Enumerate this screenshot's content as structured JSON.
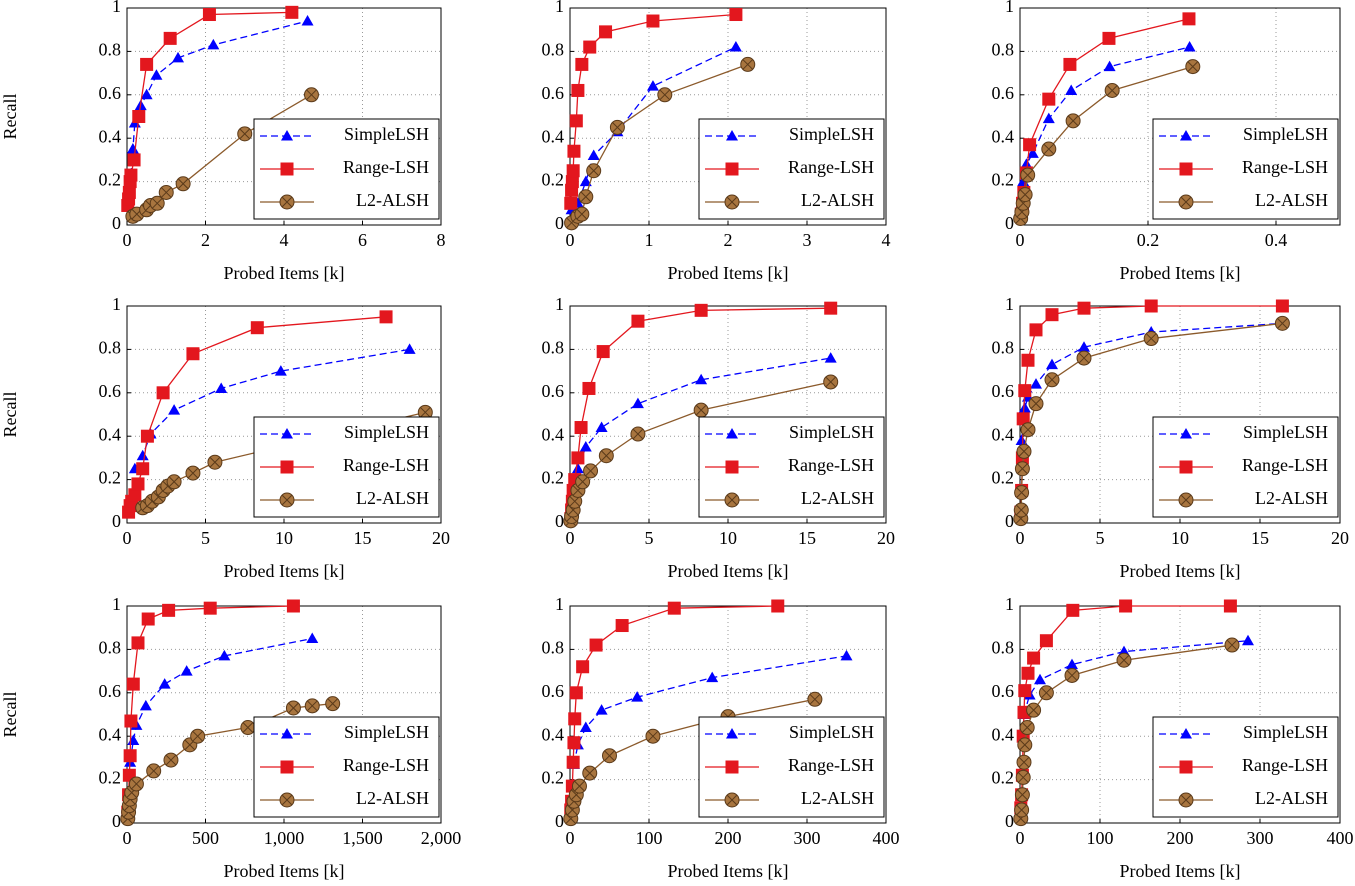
{
  "chart_data": [
    {
      "type": "line",
      "xlabel": "Probed Items [k]",
      "ylabel": "Recall",
      "xlim": [
        0,
        8
      ],
      "xticks": [
        0,
        2,
        4,
        6,
        8
      ],
      "ylim": [
        0,
        1
      ],
      "yticks": [
        0,
        0.2,
        0.4,
        0.6,
        0.8,
        1
      ],
      "grid": true,
      "legend": "lower right",
      "series": [
        {
          "name": "SimpleLSH",
          "color": "#0000ff",
          "x": [
            0.1,
            0.15,
            0.2,
            0.35,
            0.5,
            0.75,
            1.3,
            2.2,
            4.6
          ],
          "values": [
            0.23,
            0.35,
            0.47,
            0.55,
            0.6,
            0.69,
            0.77,
            0.83,
            0.94
          ]
        },
        {
          "name": "Range-LSH",
          "color": "#e3171e",
          "x": [
            0.02,
            0.04,
            0.06,
            0.08,
            0.1,
            0.18,
            0.3,
            0.5,
            1.1,
            2.1,
            4.2
          ],
          "values": [
            0.09,
            0.12,
            0.15,
            0.2,
            0.23,
            0.3,
            0.5,
            0.74,
            0.86,
            0.97,
            0.98
          ]
        },
        {
          "name": "L2-ALSH",
          "color": "#8b5a2b",
          "x": [
            0.15,
            0.25,
            0.5,
            0.6,
            0.77,
            1.0,
            1.43,
            3.0,
            4.7
          ],
          "values": [
            0.04,
            0.05,
            0.07,
            0.09,
            0.1,
            0.15,
            0.19,
            0.42,
            0.6
          ]
        }
      ]
    },
    {
      "type": "line",
      "xlabel": "Probed Items [k]",
      "xlim": [
        0,
        4
      ],
      "xticks": [
        0,
        1,
        2,
        3,
        4
      ],
      "ylim": [
        0,
        1
      ],
      "yticks": [
        0,
        0.2,
        0.4,
        0.6,
        0.8,
        1
      ],
      "grid": true,
      "legend": "lower right",
      "series": [
        {
          "name": "SimpleLSH",
          "color": "#0000ff",
          "x": [
            0.02,
            0.1,
            0.2,
            0.3,
            0.6,
            1.05,
            2.1
          ],
          "values": [
            0.07,
            0.1,
            0.2,
            0.32,
            0.43,
            0.64,
            0.82
          ]
        },
        {
          "name": "Range-LSH",
          "color": "#e3171e",
          "x": [
            0.01,
            0.02,
            0.03,
            0.04,
            0.05,
            0.08,
            0.1,
            0.15,
            0.25,
            0.45,
            1.05,
            2.1
          ],
          "values": [
            0.1,
            0.16,
            0.2,
            0.25,
            0.34,
            0.48,
            0.62,
            0.74,
            0.82,
            0.89,
            0.94,
            0.97
          ]
        },
        {
          "name": "L2-ALSH",
          "color": "#8b5a2b",
          "x": [
            0.02,
            0.1,
            0.15,
            0.2,
            0.3,
            0.6,
            1.2,
            2.25
          ],
          "values": [
            0.01,
            0.04,
            0.05,
            0.13,
            0.25,
            0.45,
            0.6,
            0.74
          ]
        }
      ]
    },
    {
      "type": "line",
      "xlabel": "Probed Items [k]",
      "xlim": [
        0,
        0.5
      ],
      "xticks": [
        0,
        0.2,
        0.4
      ],
      "ylim": [
        0,
        1
      ],
      "yticks": [
        0,
        0.2,
        0.4,
        0.6,
        0.8,
        1
      ],
      "grid": true,
      "legend": "lower right",
      "series": [
        {
          "name": "SimpleLSH",
          "color": "#0000ff",
          "x": [
            0.005,
            0.01,
            0.02,
            0.045,
            0.08,
            0.14,
            0.265
          ],
          "values": [
            0.2,
            0.28,
            0.33,
            0.49,
            0.62,
            0.73,
            0.82
          ]
        },
        {
          "name": "Range-LSH",
          "color": "#e3171e",
          "x": [
            0.002,
            0.004,
            0.006,
            0.01,
            0.015,
            0.045,
            0.078,
            0.139,
            0.264
          ],
          "values": [
            0.05,
            0.1,
            0.15,
            0.24,
            0.37,
            0.58,
            0.74,
            0.86,
            0.95
          ]
        },
        {
          "name": "L2-ALSH",
          "color": "#8b5a2b",
          "x": [
            0.001,
            0.003,
            0.005,
            0.008,
            0.012,
            0.045,
            0.083,
            0.144,
            0.27
          ],
          "values": [
            0.03,
            0.06,
            0.1,
            0.14,
            0.23,
            0.35,
            0.48,
            0.62,
            0.73
          ]
        }
      ]
    },
    {
      "type": "line",
      "xlabel": "Probed Items [k]",
      "ylabel": "Recall",
      "xlim": [
        0,
        20
      ],
      "xticks": [
        0,
        5,
        10,
        15,
        20
      ],
      "ylim": [
        0,
        1
      ],
      "yticks": [
        0,
        0.2,
        0.4,
        0.6,
        0.8,
        1
      ],
      "grid": true,
      "legend": "lower right",
      "series": [
        {
          "name": "SimpleLSH",
          "color": "#0000ff",
          "x": [
            0.5,
            1,
            1.5,
            3,
            6,
            9.8,
            18
          ],
          "values": [
            0.25,
            0.31,
            0.41,
            0.52,
            0.62,
            0.7,
            0.8
          ]
        },
        {
          "name": "Range-LSH",
          "color": "#e3171e",
          "x": [
            0.1,
            0.2,
            0.3,
            0.5,
            0.7,
            1,
            1.3,
            2.3,
            4.2,
            8.3,
            16.5
          ],
          "values": [
            0.05,
            0.08,
            0.1,
            0.13,
            0.18,
            0.25,
            0.4,
            0.6,
            0.78,
            0.9,
            0.95
          ]
        },
        {
          "name": "L2-ALSH",
          "color": "#8b5a2b",
          "x": [
            1,
            1.3,
            1.6,
            2,
            2.3,
            2.6,
            3,
            4.2,
            5.6,
            19
          ],
          "values": [
            0.07,
            0.08,
            0.1,
            0.12,
            0.15,
            0.17,
            0.19,
            0.23,
            0.28,
            0.51
          ]
        }
      ]
    },
    {
      "type": "line",
      "xlabel": "Probed Items [k]",
      "xlim": [
        0,
        20
      ],
      "xticks": [
        0,
        5,
        10,
        15,
        20
      ],
      "ylim": [
        0,
        1
      ],
      "yticks": [
        0,
        0.2,
        0.4,
        0.6,
        0.8,
        1
      ],
      "grid": true,
      "legend": "lower right",
      "series": [
        {
          "name": "SimpleLSH",
          "color": "#0000ff",
          "x": [
            0.2,
            0.5,
            1,
            2,
            4.3,
            8.3,
            16.5
          ],
          "values": [
            0.18,
            0.25,
            0.35,
            0.44,
            0.55,
            0.66,
            0.76
          ]
        },
        {
          "name": "Range-LSH",
          "color": "#e3171e",
          "x": [
            0.05,
            0.1,
            0.15,
            0.2,
            0.3,
            0.5,
            0.7,
            1.2,
            2.1,
            4.3,
            8.3,
            16.5
          ],
          "values": [
            0.02,
            0.06,
            0.1,
            0.15,
            0.2,
            0.3,
            0.44,
            0.62,
            0.79,
            0.93,
            0.98,
            0.99
          ]
        },
        {
          "name": "L2-ALSH",
          "color": "#8b5a2b",
          "x": [
            0.05,
            0.1,
            0.2,
            0.3,
            0.5,
            0.8,
            1.3,
            2.3,
            4.3,
            8.3,
            16.5
          ],
          "values": [
            0.01,
            0.03,
            0.06,
            0.1,
            0.15,
            0.19,
            0.24,
            0.31,
            0.41,
            0.52,
            0.65
          ]
        }
      ]
    },
    {
      "type": "line",
      "xlabel": "Probed Items [k]",
      "xlim": [
        0,
        20
      ],
      "xticks": [
        0,
        5,
        10,
        15,
        20
      ],
      "ylim": [
        0,
        1
      ],
      "yticks": [
        0,
        0.2,
        0.4,
        0.6,
        0.8,
        1
      ],
      "grid": true,
      "legend": "lower right",
      "series": [
        {
          "name": "SimpleLSH",
          "color": "#0000ff",
          "x": [
            0.1,
            0.3,
            0.5,
            1,
            2,
            4,
            8.2,
            16.4
          ],
          "values": [
            0.38,
            0.53,
            0.58,
            0.64,
            0.73,
            0.81,
            0.88,
            0.92
          ]
        },
        {
          "name": "Range-LSH",
          "color": "#e3171e",
          "x": [
            0.05,
            0.1,
            0.15,
            0.2,
            0.3,
            0.5,
            1,
            2,
            4,
            8.2,
            16.4
          ],
          "values": [
            0.05,
            0.15,
            0.3,
            0.48,
            0.61,
            0.75,
            0.89,
            0.96,
            0.99,
            1,
            1
          ]
        },
        {
          "name": "L2-ALSH",
          "color": "#8b5a2b",
          "x": [
            0.05,
            0.08,
            0.1,
            0.15,
            0.25,
            0.5,
            1,
            2,
            4,
            8.2,
            16.4
          ],
          "values": [
            0.02,
            0.06,
            0.14,
            0.25,
            0.33,
            0.43,
            0.55,
            0.66,
            0.76,
            0.85,
            0.92
          ]
        }
      ]
    },
    {
      "type": "line",
      "xlabel": "Probed Items [k]",
      "ylabel": "Recall",
      "xlim": [
        0,
        2000
      ],
      "xticks": [
        0,
        500,
        {
          "value": 1000,
          "label": "1,000"
        },
        {
          "value": 1500,
          "label": "1,500"
        },
        {
          "value": 2000,
          "label": "2,000"
        }
      ],
      "ylim": [
        0,
        1
      ],
      "yticks": [
        0,
        0.2,
        0.4,
        0.6,
        0.8,
        1
      ],
      "grid": true,
      "legend": "lower right",
      "series": [
        {
          "name": "SimpleLSH",
          "color": "#0000ff",
          "x": [
            20,
            40,
            60,
            120,
            240,
            380,
            620,
            1180
          ],
          "values": [
            0.28,
            0.38,
            0.45,
            0.54,
            0.64,
            0.7,
            0.77,
            0.85
          ]
        },
        {
          "name": "Range-LSH",
          "color": "#e3171e",
          "x": [
            5,
            10,
            15,
            20,
            25,
            40,
            70,
            135,
            265,
            530,
            1060
          ],
          "values": [
            0.05,
            0.13,
            0.22,
            0.31,
            0.47,
            0.64,
            0.83,
            0.94,
            0.98,
            0.99,
            1
          ]
        },
        {
          "name": "L2-ALSH",
          "color": "#8b5a2b",
          "x": [
            5,
            10,
            15,
            20,
            30,
            60,
            170,
            280,
            400,
            450,
            770,
            1060,
            1180,
            1310
          ],
          "values": [
            0.02,
            0.05,
            0.08,
            0.11,
            0.14,
            0.18,
            0.24,
            0.29,
            0.36,
            0.4,
            0.44,
            0.53,
            0.54,
            0.55
          ]
        }
      ]
    },
    {
      "type": "line",
      "xlabel": "Probed Items [k]",
      "xlim": [
        0,
        400
      ],
      "xticks": [
        0,
        100,
        200,
        300,
        400
      ],
      "ylim": [
        0,
        1
      ],
      "yticks": [
        0,
        0.2,
        0.4,
        0.6,
        0.8,
        1
      ],
      "grid": true,
      "legend": "lower right",
      "series": [
        {
          "name": "SimpleLSH",
          "color": "#0000ff",
          "x": [
            5,
            10,
            20,
            40,
            85,
            180,
            350
          ],
          "values": [
            0.27,
            0.36,
            0.44,
            0.52,
            0.58,
            0.67,
            0.77
          ]
        },
        {
          "name": "Range-LSH",
          "color": "#e3171e",
          "x": [
            1,
            2,
            3,
            4,
            5,
            6,
            8,
            16,
            33,
            66,
            132,
            263
          ],
          "values": [
            0.06,
            0.1,
            0.17,
            0.28,
            0.37,
            0.48,
            0.6,
            0.72,
            0.82,
            0.91,
            0.99,
            1
          ]
        },
        {
          "name": "L2-ALSH",
          "color": "#8b5a2b",
          "x": [
            1,
            3,
            5,
            8,
            12,
            25,
            50,
            105,
            200,
            310
          ],
          "values": [
            0.02,
            0.06,
            0.1,
            0.13,
            0.17,
            0.23,
            0.31,
            0.4,
            0.49,
            0.57
          ]
        }
      ]
    },
    {
      "type": "line",
      "xlabel": "Probed Items [k]",
      "xlim": [
        0,
        400
      ],
      "xticks": [
        0,
        100,
        200,
        300,
        400
      ],
      "ylim": [
        0,
        1
      ],
      "yticks": [
        0,
        0.2,
        0.4,
        0.6,
        0.8,
        1
      ],
      "grid": true,
      "legend": "lower right",
      "series": [
        {
          "name": "SimpleLSH",
          "color": "#0000ff",
          "x": [
            5,
            12,
            25,
            65,
            130,
            285
          ],
          "values": [
            0.5,
            0.59,
            0.66,
            0.73,
            0.79,
            0.84
          ]
        },
        {
          "name": "Range-LSH",
          "color": "#e3171e",
          "x": [
            1,
            2,
            3,
            4,
            5,
            6,
            10,
            17,
            33,
            66,
            132,
            263
          ],
          "values": [
            0.07,
            0.13,
            0.22,
            0.4,
            0.51,
            0.61,
            0.69,
            0.76,
            0.84,
            0.98,
            1,
            1
          ]
        },
        {
          "name": "L2-ALSH",
          "color": "#8b5a2b",
          "x": [
            1,
            2,
            3,
            4,
            5,
            6,
            9,
            17,
            33,
            65,
            130,
            265
          ],
          "values": [
            0.02,
            0.06,
            0.13,
            0.21,
            0.28,
            0.36,
            0.44,
            0.52,
            0.6,
            0.68,
            0.75,
            0.82
          ]
        }
      ]
    }
  ]
}
